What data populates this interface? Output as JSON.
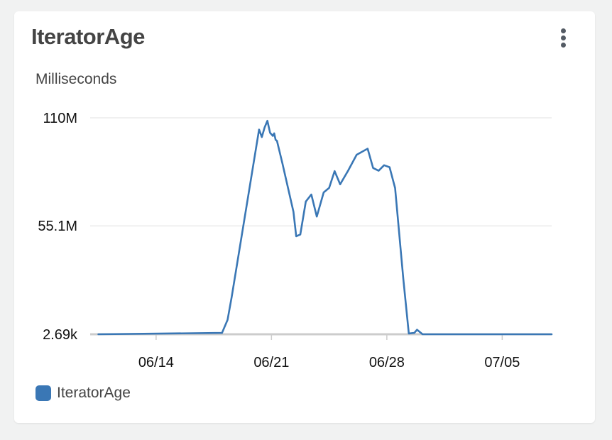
{
  "widget": {
    "title": "IteratorAge",
    "unit": "Milliseconds",
    "menu_icon": "more-vertical-icon"
  },
  "colors": {
    "series": "#3a77b5",
    "grid": "#e6e6e6",
    "axis": "#cccccc",
    "text": "#444444"
  },
  "chart_data": {
    "type": "line",
    "ylabel": "Milliseconds",
    "ylim": [
      2690,
      110000000
    ],
    "yticks": [
      {
        "value": 110000000,
        "label": "110M"
      },
      {
        "value": 55100000,
        "label": "55.1M"
      },
      {
        "value": 2690,
        "label": "2.69k"
      }
    ],
    "xlim": [
      "06/10",
      "07/08"
    ],
    "xticks": [
      {
        "value": "06/14",
        "label": "06/14"
      },
      {
        "value": "06/21",
        "label": "06/21"
      },
      {
        "value": "06/28",
        "label": "06/28"
      },
      {
        "value": "07/05",
        "label": "07/05"
      }
    ],
    "grid": true,
    "legend_position": "bottom-left",
    "series": [
      {
        "name": "IteratorAge",
        "points": [
          [
            "06/10 12:00",
            0.003
          ],
          [
            "06/18 00:00",
            0.7
          ],
          [
            "06/18 08:00",
            7.3
          ],
          [
            "06/18 14:00",
            18.9
          ],
          [
            "06/20 06:00",
            104.0
          ],
          [
            "06/20 10:00",
            100.2
          ],
          [
            "06/20 14:00",
            105.1
          ],
          [
            "06/20 18:00",
            108.5
          ],
          [
            "06/20 22:00",
            102.4
          ],
          [
            "06/21 02:00",
            100.8
          ],
          [
            "06/21 04:00",
            102.1
          ],
          [
            "06/21 06:00",
            98.8
          ],
          [
            "06/21 08:00",
            98.3
          ],
          [
            "06/21 16:00",
            86.8
          ],
          [
            "06/22 08:00",
            62.3
          ],
          [
            "06/22 12:00",
            49.8
          ],
          [
            "06/22 18:00",
            50.7
          ],
          [
            "06/23 02:00",
            67.4
          ],
          [
            "06/23 10:00",
            71.0
          ],
          [
            "06/23 18:00",
            59.8
          ],
          [
            "06/24 04:00",
            72.1
          ],
          [
            "06/24 12:00",
            74.4
          ],
          [
            "06/24 20:00",
            82.9
          ],
          [
            "06/25 04:00",
            76.2
          ],
          [
            "06/25 16:00",
            83.4
          ],
          [
            "06/26 04:00",
            91.2
          ],
          [
            "06/26 20:00",
            94.3
          ],
          [
            "06/27 04:00",
            84.5
          ],
          [
            "06/27 12:00",
            83.1
          ],
          [
            "06/27 20:00",
            85.9
          ],
          [
            "06/28 04:00",
            84.9
          ],
          [
            "06/28 12:00",
            74.3
          ],
          [
            "06/29 00:00",
            28.0
          ],
          [
            "06/29 08:00",
            0.4
          ],
          [
            "06/29 16:00",
            0.7
          ],
          [
            "06/29 20:00",
            2.3
          ],
          [
            "06/30 04:00",
            0.003
          ],
          [
            "07/08 00:00",
            0.003
          ]
        ]
      }
    ],
    "value_scale": "millions"
  },
  "legend": {
    "items": [
      {
        "label": "IteratorAge",
        "color": "#3a77b5"
      }
    ]
  }
}
